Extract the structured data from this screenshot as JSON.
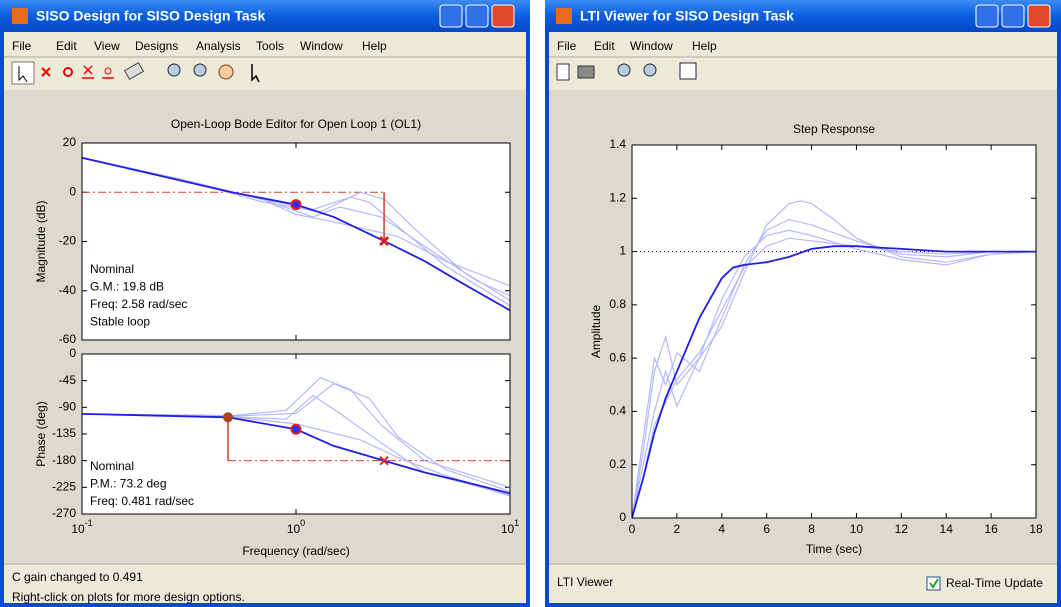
{
  "windows": [
    {
      "title": "SISO Design for SISO Design Task",
      "menu": [
        "File",
        "Edit",
        "View",
        "Designs",
        "Analysis",
        "Tools",
        "Window",
        "Help"
      ],
      "status": [
        "C gain changed to 0.491",
        "Right-click on plots for more design options."
      ]
    },
    {
      "title": "LTI Viewer for SISO Design Task",
      "menu": [
        "File",
        "Edit",
        "Window",
        "Help"
      ],
      "status": [
        "LTI Viewer"
      ],
      "checkbox": "Real-Time Update"
    }
  ],
  "chart_data": [
    {
      "type": "line",
      "title": "Open-Loop Bode Editor for Open Loop 1 (OL1)",
      "ylabel": "Magnitude (dB)",
      "log_x": true,
      "xlim": [
        0.1,
        10
      ],
      "ylim": [
        -60,
        20
      ],
      "yticks": [
        20,
        0,
        -20,
        -40,
        -60
      ],
      "series": [
        {
          "color": "#b4b8ff",
          "x": [
            0.1,
            0.3,
            0.7,
            1.2,
            1.8,
            2.2,
            3,
            5,
            10
          ],
          "values": [
            14,
            5,
            -3,
            -7,
            -2,
            -4,
            -14,
            -30,
            -46
          ]
        },
        {
          "color": "#b4b8ff",
          "x": [
            0.1,
            0.3,
            0.7,
            1.3,
            2,
            2.6,
            3.5,
            6,
            10
          ],
          "values": [
            14,
            5,
            -4,
            -8,
            0,
            -3,
            -14,
            -32,
            -44
          ]
        },
        {
          "color": "#b4b8ff",
          "x": [
            0.1,
            0.3,
            0.7,
            1.2,
            1.6,
            2.5,
            4,
            7,
            10
          ],
          "values": [
            14,
            5,
            -3,
            -10,
            -6,
            -10,
            -22,
            -36,
            -42
          ]
        },
        {
          "color": "#b4b8ff",
          "x": [
            0.1,
            0.3,
            0.7,
            1,
            1.5,
            3,
            5,
            10
          ],
          "values": [
            14,
            5,
            -3,
            -9,
            -12,
            -18,
            -28,
            -38
          ]
        },
        {
          "color": "#1e1ee6",
          "x": [
            0.1,
            0.2,
            0.5,
            1,
            1.5,
            2.58,
            4,
            6,
            10
          ],
          "values": [
            14,
            8,
            0,
            -5,
            -10,
            -19.8,
            -28,
            -37,
            -48
          ]
        }
      ],
      "reference_lines": [
        {
          "y": 0,
          "x_from": 0.1,
          "x_to": 2.58
        }
      ],
      "drop_lines": [
        {
          "x": 2.58,
          "from": 0,
          "to": -19.8
        }
      ],
      "markers": [
        {
          "shape": "circle",
          "x": 1,
          "y": -5
        },
        {
          "shape": "cross",
          "x": 2.58,
          "y": -19.8
        }
      ],
      "annotations": [
        "Nominal",
        "G.M.: 19.8 dB",
        "Freq: 2.58 rad/sec",
        "Stable loop"
      ]
    },
    {
      "type": "line",
      "ylabel": "Phase (deg)",
      "xlabel": "Frequency (rad/sec)",
      "log_x": true,
      "xlim": [
        0.1,
        10
      ],
      "xticks": [
        {
          "value": 0.1,
          "label": "10",
          "exponent": "-1"
        },
        {
          "value": 1,
          "label": "10",
          "exponent": "0"
        },
        {
          "value": 10,
          "label": "10",
          "exponent": "1"
        }
      ],
      "ylim": [
        -270,
        0
      ],
      "yticks": [
        0,
        -45,
        -90,
        -135,
        -180,
        -225,
        -270
      ],
      "series": [
        {
          "color": "#b4b8ff",
          "x": [
            0.1,
            0.5,
            0.9,
            1.3,
            1.8,
            2.5,
            4,
            10
          ],
          "values": [
            -101,
            -104,
            -95,
            -40,
            -60,
            -120,
            -180,
            -225
          ]
        },
        {
          "color": "#b4b8ff",
          "x": [
            0.1,
            0.5,
            1,
            1.5,
            2.2,
            3,
            5,
            10
          ],
          "values": [
            -101,
            -105,
            -100,
            -50,
            -75,
            -140,
            -195,
            -232
          ]
        },
        {
          "color": "#b4b8ff",
          "x": [
            0.1,
            0.5,
            0.9,
            1.2,
            1.6,
            2.5,
            4,
            10
          ],
          "values": [
            -101,
            -106,
            -110,
            -70,
            -100,
            -150,
            -200,
            -238
          ]
        },
        {
          "color": "#b4b8ff",
          "x": [
            0.1,
            0.5,
            1,
            2,
            3,
            5,
            10
          ],
          "values": [
            -101,
            -106,
            -118,
            -145,
            -175,
            -205,
            -240
          ]
        },
        {
          "color": "#1e1ee6",
          "x": [
            0.1,
            0.481,
            1,
            1.5,
            2.58,
            4,
            6,
            10
          ],
          "values": [
            -101,
            -106.8,
            -127,
            -155,
            -180,
            -200,
            -215,
            -235
          ]
        }
      ],
      "reference_lines": [
        {
          "y": -180,
          "x_from": 0.481,
          "x_to": 10
        }
      ],
      "drop_lines": [
        {
          "x": 0.481,
          "from": -106.8,
          "to": -180
        }
      ],
      "markers": [
        {
          "shape": "dot",
          "x": 0.481,
          "y": -106.8
        },
        {
          "shape": "circle",
          "x": 1,
          "y": -127
        },
        {
          "shape": "x",
          "x": 2.58,
          "y": -180
        }
      ],
      "annotations": [
        "Nominal",
        "P.M.: 73.2 deg",
        "Freq: 0.481 rad/sec"
      ]
    },
    {
      "type": "line",
      "title": "Step Response",
      "xlabel": "Time (sec)",
      "ylabel": "Amplitude",
      "xlim": [
        0,
        18
      ],
      "xticks": [
        0,
        2,
        4,
        6,
        8,
        10,
        12,
        14,
        16,
        18
      ],
      "ylim": [
        0,
        1.4
      ],
      "yticks": [
        0,
        0.2,
        0.4,
        0.6,
        0.8,
        1,
        1.2,
        1.4
      ],
      "series": [
        {
          "color": "#b4b8ff",
          "x": [
            0,
            0.5,
            1,
            1.5,
            2,
            2.5,
            3,
            4,
            5,
            6,
            7,
            7.5,
            8,
            9,
            10,
            12,
            14,
            16,
            18
          ],
          "values": [
            0,
            0.25,
            0.55,
            0.68,
            0.5,
            0.55,
            0.6,
            0.72,
            0.92,
            1.1,
            1.18,
            1.19,
            1.18,
            1.12,
            1.05,
            0.98,
            0.96,
            0.99,
            1
          ]
        },
        {
          "color": "#b4b8ff",
          "x": [
            0,
            0.5,
            1,
            1.5,
            2,
            3,
            4,
            5,
            6,
            7,
            8,
            10,
            12,
            14,
            16,
            18
          ],
          "values": [
            0,
            0.3,
            0.6,
            0.5,
            0.62,
            0.55,
            0.75,
            0.95,
            1.08,
            1.12,
            1.1,
            1.04,
            0.99,
            0.98,
            1,
            1
          ]
        },
        {
          "color": "#b4b8ff",
          "x": [
            0,
            0.5,
            1,
            1.5,
            2,
            3,
            4,
            5,
            6,
            7,
            8,
            10,
            12,
            14,
            16,
            18
          ],
          "values": [
            0,
            0.2,
            0.4,
            0.55,
            0.42,
            0.6,
            0.82,
            0.98,
            1.06,
            1.08,
            1.06,
            1.01,
            0.97,
            0.95,
            0.99,
            1
          ]
        },
        {
          "color": "#b4b8ff",
          "x": [
            0,
            0.5,
            1,
            2,
            3,
            4,
            5,
            6,
            7,
            8,
            10,
            12,
            14,
            16,
            18
          ],
          "values": [
            0,
            0.15,
            0.35,
            0.52,
            0.62,
            0.78,
            0.94,
            1.02,
            1.05,
            1.04,
            1.02,
            1,
            0.99,
            1,
            1
          ]
        },
        {
          "color": "#1e1ee6",
          "x": [
            0,
            0.5,
            1,
            1.5,
            2,
            3,
            4,
            4.5,
            5,
            6,
            7,
            8,
            9,
            10,
            12,
            14,
            16,
            18
          ],
          "values": [
            0,
            0.15,
            0.32,
            0.45,
            0.55,
            0.75,
            0.9,
            0.94,
            0.95,
            0.96,
            0.98,
            1.01,
            1.02,
            1.02,
            1.01,
            1,
            1,
            1
          ]
        }
      ],
      "reference_lines": [
        {
          "y": 1,
          "x_from": 0,
          "x_to": 18,
          "dotted": true
        }
      ]
    }
  ]
}
